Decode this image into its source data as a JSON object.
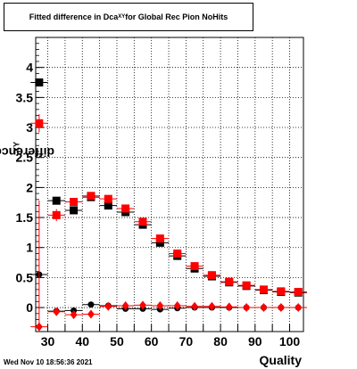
{
  "title": {
    "main": "Fitted difference in Dca",
    "sub": "XY",
    "rest": " for Global Rec Pion NoHits"
  },
  "ylabel": {
    "main": "difference in Dca",
    "sub": "XY"
  },
  "xlabel": "Quality",
  "datestamp": "Wed Nov 10 18:56:36 2021",
  "colors": {
    "black_series": "#000000",
    "red_series": "#ff0000",
    "grid": "#000000"
  },
  "chart_data": {
    "type": "scatter",
    "title": "Fitted difference in Dca_XY for Global Rec Pion NoHits",
    "xlabel": "Quality",
    "ylabel": "difference in Dca_XY",
    "xlim": [
      26.5,
      104
    ],
    "ylim": [
      -0.4,
      4.5
    ],
    "xticks": [
      30,
      35,
      40,
      45,
      50,
      55,
      60,
      65,
      70,
      75,
      80,
      85,
      90,
      95,
      100
    ],
    "xtick_labels": [
      "30",
      "40",
      "50",
      "60",
      "70",
      "80",
      "90",
      "100"
    ],
    "ytick_labels": [
      "0",
      "0.5",
      "1",
      "1.5",
      "2",
      "2.5",
      "3",
      "3.5",
      "4"
    ],
    "yticks": [
      0,
      0.5,
      1,
      1.5,
      2,
      2.5,
      3,
      3.5,
      4
    ],
    "grid": true,
    "x": [
      27.5,
      32.5,
      37.5,
      42.5,
      47.5,
      52.5,
      57.5,
      62.5,
      67.5,
      72.5,
      77.5,
      82.5,
      87.5,
      92.5,
      97.5,
      102.5
    ],
    "series": [
      {
        "marker": "square",
        "color": "#000000",
        "values": [
          3.75,
          1.78,
          1.62,
          1.84,
          1.7,
          1.59,
          1.38,
          1.08,
          0.86,
          0.65,
          0.52,
          0.42,
          0.36,
          0.29,
          0.26,
          0.25
        ],
        "errors": [
          0.05,
          0.05,
          0.05,
          0.04,
          0.04,
          0.04,
          0.03,
          0.03,
          0.03,
          0.03,
          0.02,
          0.02,
          0.02,
          0.02,
          0.02,
          0.02
        ]
      },
      {
        "marker": "square",
        "color": "#ff0000",
        "values": [
          3.07,
          1.54,
          1.76,
          1.86,
          1.81,
          1.65,
          1.43,
          1.15,
          0.9,
          0.69,
          0.54,
          0.43,
          0.37,
          0.3,
          0.27,
          0.26
        ],
        "errors": [
          0.15,
          0.1,
          0.06,
          0.05,
          0.05,
          0.04,
          0.04,
          0.03,
          0.03,
          0.03,
          0.02,
          0.02,
          0.02,
          0.02,
          0.02,
          0.02
        ]
      },
      {
        "marker": "circle",
        "color": "#000000",
        "values": [
          0.55,
          -0.06,
          -0.05,
          0.05,
          0.03,
          -0.02,
          -0.02,
          -0.03,
          -0.01,
          0.0,
          0.0,
          0.0,
          0.0,
          0.0,
          0.0,
          0.0
        ],
        "errors": [
          0.05,
          0.03,
          0.03,
          0.02,
          0.02,
          0.02,
          0.02,
          0.02,
          0.01,
          0.01,
          0.01,
          0.01,
          0.01,
          0.01,
          0.01,
          0.01
        ]
      },
      {
        "marker": "diamond",
        "color": "#ff0000",
        "values": [
          -0.32,
          -0.07,
          -0.12,
          -0.11,
          0.02,
          0.03,
          0.04,
          0.03,
          0.03,
          0.02,
          0.02,
          0.01,
          0.0,
          0.0,
          0.0,
          0.0
        ],
        "errors": [
          2.1,
          0.06,
          0.05,
          0.04,
          0.03,
          0.03,
          0.02,
          0.02,
          0.02,
          0.02,
          0.01,
          0.01,
          0.01,
          0.01,
          0.01,
          0.01
        ]
      }
    ]
  }
}
